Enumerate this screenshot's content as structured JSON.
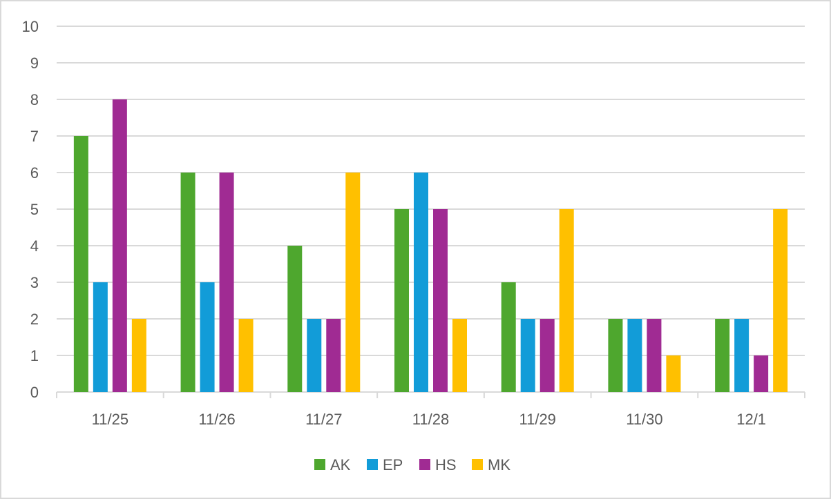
{
  "chart_data": {
    "type": "bar",
    "title": "",
    "xlabel": "",
    "ylabel": "",
    "categories": [
      "11/25",
      "11/26",
      "11/27",
      "11/28",
      "11/29",
      "11/30",
      "12/1"
    ],
    "series": [
      {
        "name": "AK",
        "color": "#4ea72e",
        "values": [
          7,
          6,
          4,
          5,
          3,
          2,
          2
        ]
      },
      {
        "name": "EP",
        "color": "#129cd8",
        "values": [
          3,
          3,
          2,
          6,
          2,
          2,
          2
        ]
      },
      {
        "name": "HS",
        "color": "#a02b93",
        "values": [
          8,
          6,
          2,
          5,
          2,
          2,
          1
        ]
      },
      {
        "name": "MK",
        "color": "#ffc000",
        "values": [
          2,
          2,
          6,
          2,
          5,
          1,
          5
        ]
      }
    ],
    "ylim": [
      0,
      10
    ],
    "yticks": [
      "0",
      "1",
      "2",
      "3",
      "4",
      "5",
      "6",
      "7",
      "8",
      "9",
      "10"
    ],
    "grid": true,
    "legend_position": "bottom"
  }
}
